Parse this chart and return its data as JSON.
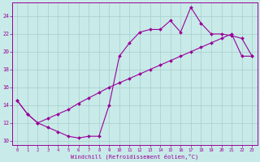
{
  "upper_x": [
    0,
    1,
    2,
    3,
    4,
    5,
    6,
    7,
    8,
    9,
    10,
    11,
    12,
    13,
    14,
    15,
    16,
    17,
    18,
    19,
    20,
    21,
    22,
    23
  ],
  "upper_y": [
    14.5,
    13.0,
    12.0,
    11.5,
    11.0,
    10.5,
    10.3,
    10.5,
    10.5,
    14.0,
    19.5,
    21.0,
    22.2,
    22.5,
    22.5,
    23.5,
    22.2,
    25.0,
    23.2,
    22.0,
    22.0,
    21.8,
    21.5,
    19.5
  ],
  "lower_x": [
    0,
    1,
    2,
    3,
    4,
    5,
    6,
    7,
    8,
    9,
    10,
    11,
    12,
    13,
    14,
    15,
    16,
    17,
    18,
    19,
    20,
    21,
    22,
    23
  ],
  "lower_y": [
    14.5,
    13.0,
    12.0,
    12.5,
    13.0,
    13.5,
    14.2,
    14.8,
    15.4,
    16.0,
    16.5,
    17.0,
    17.5,
    18.0,
    18.5,
    19.0,
    19.5,
    20.0,
    20.5,
    21.0,
    21.5,
    22.0,
    19.5,
    19.5
  ],
  "color": "#990099",
  "bg_color": "#c8eae8",
  "grid_color": "#a8cece",
  "xlabel": "Windchill (Refroidissement éolien,°C)",
  "xlim": [
    -0.5,
    23.5
  ],
  "ylim": [
    9.5,
    25.5
  ],
  "xticks": [
    0,
    1,
    2,
    3,
    4,
    5,
    6,
    7,
    8,
    9,
    10,
    11,
    12,
    13,
    14,
    15,
    16,
    17,
    18,
    19,
    20,
    21,
    22,
    23
  ],
  "yticks": [
    10,
    12,
    14,
    16,
    18,
    20,
    22,
    24
  ]
}
